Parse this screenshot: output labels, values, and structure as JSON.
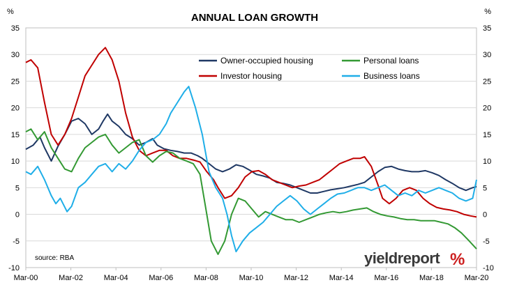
{
  "chart_data": {
    "type": "line",
    "title": "ANNUAL LOAN GROWTH",
    "ylabel_left": "%",
    "ylabel_right": "%",
    "ylim": [
      -10,
      35
    ],
    "yticks": [
      -10,
      -5,
      0,
      5,
      10,
      15,
      20,
      25,
      30,
      35
    ],
    "xlim": [
      2000.17,
      2020.17
    ],
    "xticks": [
      {
        "x": 2000.17,
        "label": "Mar-00"
      },
      {
        "x": 2002.17,
        "label": "Mar-02"
      },
      {
        "x": 2004.17,
        "label": "Mar-04"
      },
      {
        "x": 2006.17,
        "label": "Mar-06"
      },
      {
        "x": 2008.17,
        "label": "Mar-08"
      },
      {
        "x": 2010.17,
        "label": "Mar-10"
      },
      {
        "x": 2012.17,
        "label": "Mar-12"
      },
      {
        "x": 2014.17,
        "label": "Mar-14"
      },
      {
        "x": 2016.17,
        "label": "Mar-16"
      },
      {
        "x": 2018.17,
        "label": "Mar-18"
      },
      {
        "x": 2020.17,
        "label": "Mar-20"
      }
    ],
    "grid": true,
    "legend": "top-center",
    "source": "source: RBA",
    "series": [
      {
        "name": "Owner-occupied housing",
        "color": "#1f3864",
        "points": [
          [
            2000.17,
            12.2
          ],
          [
            2000.5,
            13.0
          ],
          [
            2000.8,
            14.5
          ],
          [
            2001.0,
            12.5
          ],
          [
            2001.3,
            10.0
          ],
          [
            2001.6,
            12.8
          ],
          [
            2001.9,
            15.0
          ],
          [
            2002.2,
            17.5
          ],
          [
            2002.5,
            18.0
          ],
          [
            2002.8,
            17.0
          ],
          [
            2003.1,
            15.0
          ],
          [
            2003.4,
            16.0
          ],
          [
            2003.6,
            17.5
          ],
          [
            2003.8,
            18.8
          ],
          [
            2004.0,
            17.5
          ],
          [
            2004.3,
            16.5
          ],
          [
            2004.6,
            15.0
          ],
          [
            2004.9,
            14.2
          ],
          [
            2005.2,
            13.0
          ],
          [
            2005.5,
            13.5
          ],
          [
            2005.8,
            14.2
          ],
          [
            2006.0,
            13.0
          ],
          [
            2006.3,
            12.3
          ],
          [
            2006.6,
            12.0
          ],
          [
            2006.9,
            11.8
          ],
          [
            2007.2,
            11.5
          ],
          [
            2007.5,
            11.5
          ],
          [
            2007.8,
            11.0
          ],
          [
            2008.0,
            10.5
          ],
          [
            2008.3,
            9.5
          ],
          [
            2008.6,
            8.5
          ],
          [
            2008.9,
            8.0
          ],
          [
            2009.2,
            8.5
          ],
          [
            2009.5,
            9.3
          ],
          [
            2009.8,
            9.0
          ],
          [
            2010.1,
            8.3
          ],
          [
            2010.4,
            7.5
          ],
          [
            2010.7,
            7.2
          ],
          [
            2011.0,
            6.8
          ],
          [
            2011.3,
            6.0
          ],
          [
            2011.6,
            5.8
          ],
          [
            2011.9,
            5.5
          ],
          [
            2012.2,
            5.0
          ],
          [
            2012.5,
            4.5
          ],
          [
            2012.8,
            4.0
          ],
          [
            2013.1,
            4.0
          ],
          [
            2013.4,
            4.3
          ],
          [
            2013.7,
            4.6
          ],
          [
            2014.0,
            4.8
          ],
          [
            2014.3,
            5.0
          ],
          [
            2014.6,
            5.3
          ],
          [
            2014.9,
            5.6
          ],
          [
            2015.2,
            6.0
          ],
          [
            2015.5,
            7.0
          ],
          [
            2015.8,
            8.0
          ],
          [
            2016.1,
            8.8
          ],
          [
            2016.4,
            9.0
          ],
          [
            2016.7,
            8.5
          ],
          [
            2017.0,
            8.2
          ],
          [
            2017.3,
            8.0
          ],
          [
            2017.6,
            8.0
          ],
          [
            2017.9,
            8.2
          ],
          [
            2018.2,
            7.8
          ],
          [
            2018.5,
            7.3
          ],
          [
            2018.8,
            6.5
          ],
          [
            2019.1,
            5.8
          ],
          [
            2019.4,
            5.0
          ],
          [
            2019.7,
            4.5
          ],
          [
            2020.0,
            5.0
          ],
          [
            2020.17,
            5.2
          ]
        ]
      },
      {
        "name": "Investor housing",
        "color": "#c00000",
        "points": [
          [
            2000.17,
            28.5
          ],
          [
            2000.4,
            29.0
          ],
          [
            2000.7,
            27.5
          ],
          [
            2001.0,
            21.0
          ],
          [
            2001.3,
            15.0
          ],
          [
            2001.6,
            13.0
          ],
          [
            2001.9,
            15.0
          ],
          [
            2002.2,
            18.0
          ],
          [
            2002.5,
            22.0
          ],
          [
            2002.8,
            26.0
          ],
          [
            2003.1,
            28.0
          ],
          [
            2003.4,
            30.0
          ],
          [
            2003.7,
            31.3
          ],
          [
            2004.0,
            29.0
          ],
          [
            2004.3,
            25.0
          ],
          [
            2004.6,
            19.0
          ],
          [
            2004.9,
            14.5
          ],
          [
            2005.2,
            12.0
          ],
          [
            2005.5,
            11.0
          ],
          [
            2005.8,
            11.5
          ],
          [
            2006.1,
            12.0
          ],
          [
            2006.4,
            12.0
          ],
          [
            2006.7,
            11.0
          ],
          [
            2007.0,
            10.5
          ],
          [
            2007.3,
            10.5
          ],
          [
            2007.6,
            10.2
          ],
          [
            2007.9,
            9.8
          ],
          [
            2008.2,
            8.0
          ],
          [
            2008.5,
            6.5
          ],
          [
            2008.7,
            5.0
          ],
          [
            2009.0,
            3.0
          ],
          [
            2009.3,
            3.5
          ],
          [
            2009.6,
            5.0
          ],
          [
            2009.9,
            7.0
          ],
          [
            2010.2,
            8.0
          ],
          [
            2010.5,
            8.2
          ],
          [
            2010.8,
            7.5
          ],
          [
            2011.1,
            6.5
          ],
          [
            2011.4,
            6.0
          ],
          [
            2011.7,
            5.5
          ],
          [
            2012.0,
            5.0
          ],
          [
            2012.3,
            5.3
          ],
          [
            2012.6,
            5.5
          ],
          [
            2012.9,
            6.0
          ],
          [
            2013.2,
            6.5
          ],
          [
            2013.5,
            7.5
          ],
          [
            2013.8,
            8.5
          ],
          [
            2014.1,
            9.5
          ],
          [
            2014.4,
            10.0
          ],
          [
            2014.7,
            10.5
          ],
          [
            2015.0,
            10.5
          ],
          [
            2015.2,
            10.8
          ],
          [
            2015.5,
            9.0
          ],
          [
            2015.8,
            5.5
          ],
          [
            2016.0,
            3.0
          ],
          [
            2016.3,
            2.0
          ],
          [
            2016.6,
            3.0
          ],
          [
            2016.9,
            4.5
          ],
          [
            2017.2,
            5.0
          ],
          [
            2017.5,
            4.5
          ],
          [
            2017.8,
            3.0
          ],
          [
            2018.1,
            2.0
          ],
          [
            2018.4,
            1.3
          ],
          [
            2018.7,
            1.0
          ],
          [
            2019.0,
            0.8
          ],
          [
            2019.3,
            0.5
          ],
          [
            2019.6,
            0.0
          ],
          [
            2019.9,
            -0.3
          ],
          [
            2020.17,
            -0.5
          ]
        ]
      },
      {
        "name": "Personal loans",
        "color": "#339933",
        "points": [
          [
            2000.17,
            15.5
          ],
          [
            2000.4,
            16.0
          ],
          [
            2000.7,
            14.0
          ],
          [
            2001.0,
            15.5
          ],
          [
            2001.3,
            12.5
          ],
          [
            2001.6,
            10.5
          ],
          [
            2001.9,
            8.5
          ],
          [
            2002.2,
            8.0
          ],
          [
            2002.5,
            10.5
          ],
          [
            2002.8,
            12.5
          ],
          [
            2003.1,
            13.5
          ],
          [
            2003.4,
            14.5
          ],
          [
            2003.7,
            15.0
          ],
          [
            2004.0,
            13.0
          ],
          [
            2004.3,
            11.5
          ],
          [
            2004.6,
            12.5
          ],
          [
            2004.9,
            13.5
          ],
          [
            2005.2,
            14.0
          ],
          [
            2005.5,
            11.0
          ],
          [
            2005.8,
            9.8
          ],
          [
            2006.1,
            11.0
          ],
          [
            2006.4,
            11.8
          ],
          [
            2006.7,
            11.5
          ],
          [
            2007.0,
            10.5
          ],
          [
            2007.3,
            10.0
          ],
          [
            2007.6,
            9.5
          ],
          [
            2007.9,
            7.5
          ],
          [
            2008.2,
            0.0
          ],
          [
            2008.4,
            -5.0
          ],
          [
            2008.7,
            -7.5
          ],
          [
            2009.0,
            -5.0
          ],
          [
            2009.3,
            0.0
          ],
          [
            2009.6,
            3.0
          ],
          [
            2009.9,
            2.5
          ],
          [
            2010.2,
            1.0
          ],
          [
            2010.5,
            -0.5
          ],
          [
            2010.8,
            0.5
          ],
          [
            2011.1,
            0.0
          ],
          [
            2011.4,
            -0.5
          ],
          [
            2011.7,
            -1.0
          ],
          [
            2012.0,
            -1.0
          ],
          [
            2012.3,
            -1.5
          ],
          [
            2012.6,
            -1.0
          ],
          [
            2012.9,
            -0.5
          ],
          [
            2013.2,
            0.0
          ],
          [
            2013.5,
            0.3
          ],
          [
            2013.8,
            0.5
          ],
          [
            2014.1,
            0.3
          ],
          [
            2014.4,
            0.5
          ],
          [
            2014.7,
            0.8
          ],
          [
            2015.0,
            1.0
          ],
          [
            2015.3,
            1.2
          ],
          [
            2015.6,
            0.5
          ],
          [
            2015.9,
            0.0
          ],
          [
            2016.2,
            -0.3
          ],
          [
            2016.5,
            -0.5
          ],
          [
            2016.8,
            -0.8
          ],
          [
            2017.1,
            -1.0
          ],
          [
            2017.4,
            -1.0
          ],
          [
            2017.7,
            -1.2
          ],
          [
            2018.0,
            -1.2
          ],
          [
            2018.3,
            -1.2
          ],
          [
            2018.6,
            -1.5
          ],
          [
            2018.9,
            -1.8
          ],
          [
            2019.2,
            -2.5
          ],
          [
            2019.5,
            -3.5
          ],
          [
            2019.8,
            -4.8
          ],
          [
            2020.17,
            -6.5
          ]
        ]
      },
      {
        "name": "Business loans",
        "color": "#1faee8",
        "points": [
          [
            2000.17,
            8.0
          ],
          [
            2000.4,
            7.5
          ],
          [
            2000.7,
            9.0
          ],
          [
            2001.0,
            6.5
          ],
          [
            2001.3,
            3.5
          ],
          [
            2001.5,
            2.0
          ],
          [
            2001.7,
            3.0
          ],
          [
            2002.0,
            0.5
          ],
          [
            2002.2,
            1.5
          ],
          [
            2002.5,
            5.0
          ],
          [
            2002.8,
            6.0
          ],
          [
            2003.1,
            7.5
          ],
          [
            2003.4,
            9.0
          ],
          [
            2003.7,
            9.5
          ],
          [
            2004.0,
            8.0
          ],
          [
            2004.3,
            9.5
          ],
          [
            2004.6,
            8.5
          ],
          [
            2004.9,
            10.0
          ],
          [
            2005.2,
            12.0
          ],
          [
            2005.5,
            13.5
          ],
          [
            2005.8,
            14.0
          ],
          [
            2006.1,
            15.0
          ],
          [
            2006.4,
            17.0
          ],
          [
            2006.6,
            19.0
          ],
          [
            2006.9,
            21.0
          ],
          [
            2007.2,
            23.0
          ],
          [
            2007.4,
            24.0
          ],
          [
            2007.7,
            20.0
          ],
          [
            2008.0,
            15.0
          ],
          [
            2008.3,
            8.0
          ],
          [
            2008.6,
            5.0
          ],
          [
            2008.9,
            3.0
          ],
          [
            2009.1,
            0.0
          ],
          [
            2009.3,
            -4.0
          ],
          [
            2009.5,
            -7.0
          ],
          [
            2009.8,
            -5.0
          ],
          [
            2010.1,
            -3.5
          ],
          [
            2010.4,
            -2.5
          ],
          [
            2010.7,
            -1.5
          ],
          [
            2011.0,
            0.0
          ],
          [
            2011.3,
            1.5
          ],
          [
            2011.6,
            2.5
          ],
          [
            2011.9,
            3.5
          ],
          [
            2012.2,
            2.5
          ],
          [
            2012.5,
            1.0
          ],
          [
            2012.8,
            0.0
          ],
          [
            2013.1,
            1.0
          ],
          [
            2013.4,
            2.0
          ],
          [
            2013.7,
            3.0
          ],
          [
            2014.0,
            3.8
          ],
          [
            2014.3,
            4.0
          ],
          [
            2014.6,
            4.5
          ],
          [
            2014.9,
            5.0
          ],
          [
            2015.2,
            5.0
          ],
          [
            2015.5,
            4.5
          ],
          [
            2015.8,
            5.0
          ],
          [
            2016.1,
            5.5
          ],
          [
            2016.4,
            4.5
          ],
          [
            2016.7,
            3.5
          ],
          [
            2017.0,
            4.0
          ],
          [
            2017.3,
            3.5
          ],
          [
            2017.6,
            4.5
          ],
          [
            2017.9,
            4.0
          ],
          [
            2018.2,
            4.5
          ],
          [
            2018.5,
            5.0
          ],
          [
            2018.8,
            4.5
          ],
          [
            2019.1,
            4.0
          ],
          [
            2019.4,
            3.0
          ],
          [
            2019.7,
            2.5
          ],
          [
            2020.0,
            3.0
          ],
          [
            2020.17,
            6.5
          ]
        ]
      }
    ]
  },
  "branding": {
    "logo_text": "yieldreport",
    "logo_symbol": "%"
  }
}
